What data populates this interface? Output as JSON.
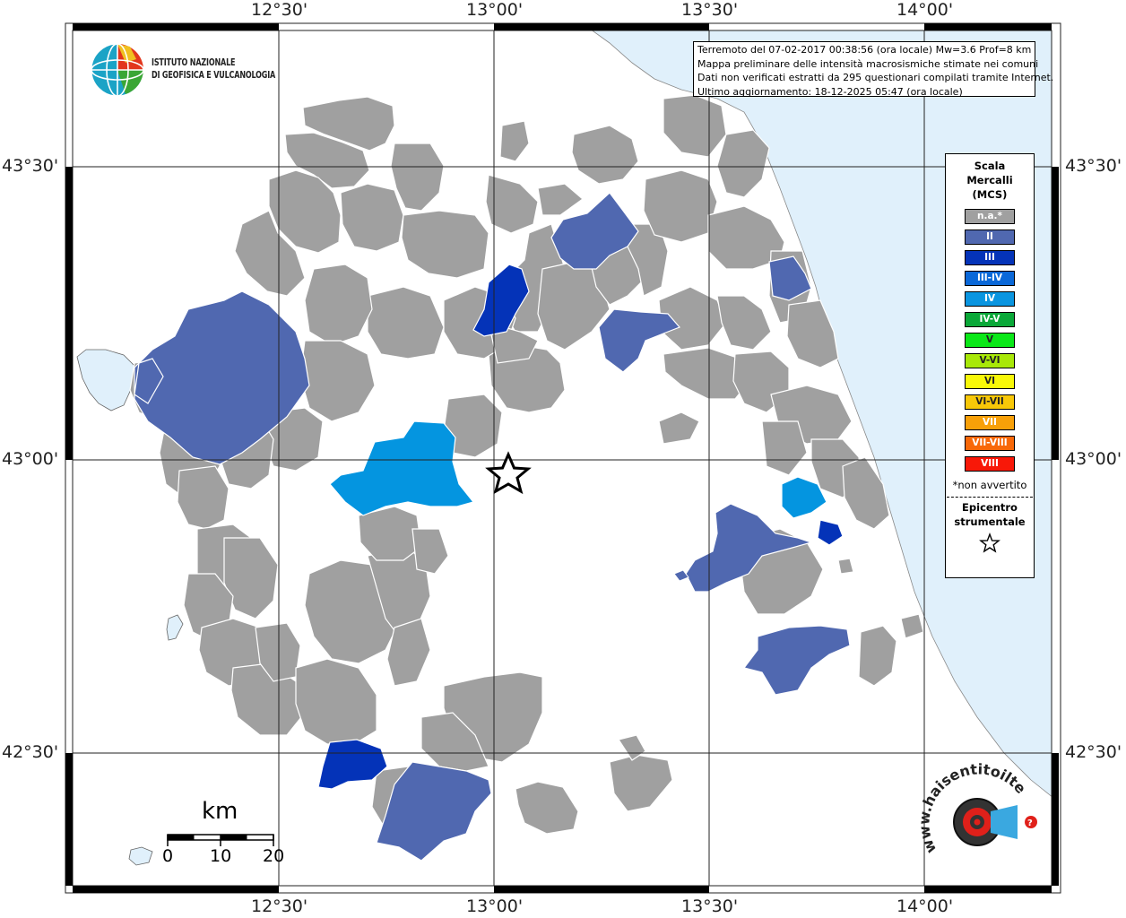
{
  "map": {
    "top_axis_labels": [
      "12°30'",
      "13°00'",
      "13°30'",
      "14°00'"
    ],
    "bottom_axis_labels": [
      "12°30'",
      "13°00'",
      "13°30'",
      "14°00'"
    ],
    "left_axis_labels": [
      "43°30'",
      "43°00'",
      "42°30'"
    ],
    "right_axis_labels": [
      "43°30'",
      "43°00'",
      "42°30'"
    ],
    "colors": {
      "sea": "#e0f0fb",
      "na": "#a0a0a0",
      "II": "#5068b0",
      "III": "#0433b8",
      "IV": "#0495e0",
      "border": "#ffffff"
    }
  },
  "logo": {
    "line1": "ISTITUTO NAZIONALE",
    "line2": "DI GEOFISICA E VULCANOLOGIA"
  },
  "info": {
    "line1": "Terremoto del 07-02-2017 00:38:56 (ora locale) Mw=3.6 Prof=8 km",
    "line2": "Mappa preliminare delle intensità macrosismiche stimate nei comuni",
    "line3": "Dati non verificati estratti da 295 questionari compilati tramite Internet.",
    "line4": "Ultimo aggiornamento: 18-12-2025 05:47 (ora locale)"
  },
  "legend": {
    "title1": "Scala",
    "title2": "Mercalli",
    "title3": "(MCS)",
    "items": [
      {
        "label": "n.a.*",
        "color": "#a0a0a0"
      },
      {
        "label": "II",
        "color": "#5068b0"
      },
      {
        "label": "III",
        "color": "#0433b8"
      },
      {
        "label": "III-IV",
        "color": "#0a68d8"
      },
      {
        "label": "IV",
        "color": "#0a95e0"
      },
      {
        "label": "IV-V",
        "color": "#0aa838"
      },
      {
        "label": "V",
        "color": "#0ae818"
      },
      {
        "label": "V-VI",
        "color": "#a8e808"
      },
      {
        "label": "VI",
        "color": "#f8f808"
      },
      {
        "label": "VI-VII",
        "color": "#f8c808"
      },
      {
        "label": "VII",
        "color": "#f8a008"
      },
      {
        "label": "VII-VIII",
        "color": "#f86808"
      },
      {
        "label": "VIII",
        "color": "#f81808"
      }
    ],
    "note": "*non avvertito",
    "epicentre1": "Epicentro",
    "epicentre2": "strumentale"
  },
  "scale_bar": {
    "unit": "km",
    "labels": [
      "0",
      "10",
      "20"
    ]
  },
  "watermark": {
    "text": "www.haisentitoilterremoto.it"
  }
}
